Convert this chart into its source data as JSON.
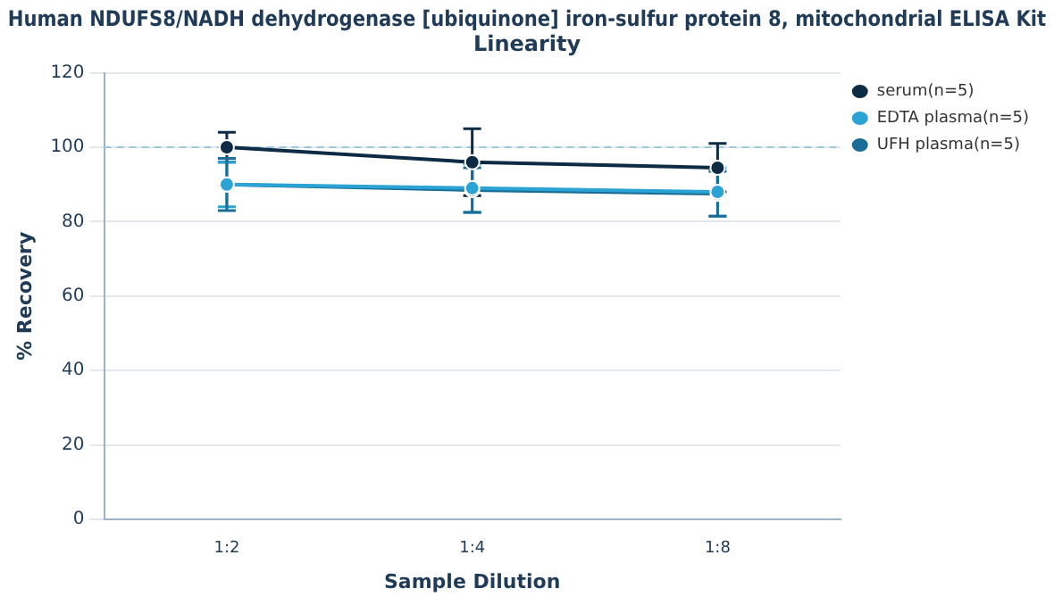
{
  "chart_data": {
    "type": "line",
    "title": "Human NDUFS8/NADH dehydrogenase [ubiquinone] iron-sulfur protein 8, mitochondrial ELISA Kit",
    "subtitle": "Linearity",
    "xlabel": "Sample Dilution",
    "ylabel": "% Recovery",
    "categories": [
      "1:2",
      "1:4",
      "1:8"
    ],
    "series": [
      {
        "name": "serum(n=5)",
        "color": "#0d2b45",
        "values": [
          100,
          96,
          94.5
        ],
        "errors": [
          4,
          9,
          6.5
        ]
      },
      {
        "name": "EDTA plasma(n=5)",
        "color": "#2ba3d4",
        "values": [
          90,
          89,
          88
        ],
        "errors": [
          6,
          6.5,
          6.5
        ]
      },
      {
        "name": "UFH plasma(n=5)",
        "color": "#1a6d96",
        "values": [
          90,
          88.5,
          87.5
        ],
        "errors": [
          7,
          6,
          6
        ]
      }
    ],
    "ylim": [
      0,
      120
    ],
    "yticks": [
      0,
      20,
      40,
      60,
      80,
      100,
      120
    ],
    "grid": "y",
    "legend": "top right",
    "marker": "circle",
    "line_style": "solid",
    "ref_lines": [
      {
        "axis": "y",
        "value": 100,
        "color": "#9cc9e0",
        "line_style": "dashed"
      }
    ]
  }
}
